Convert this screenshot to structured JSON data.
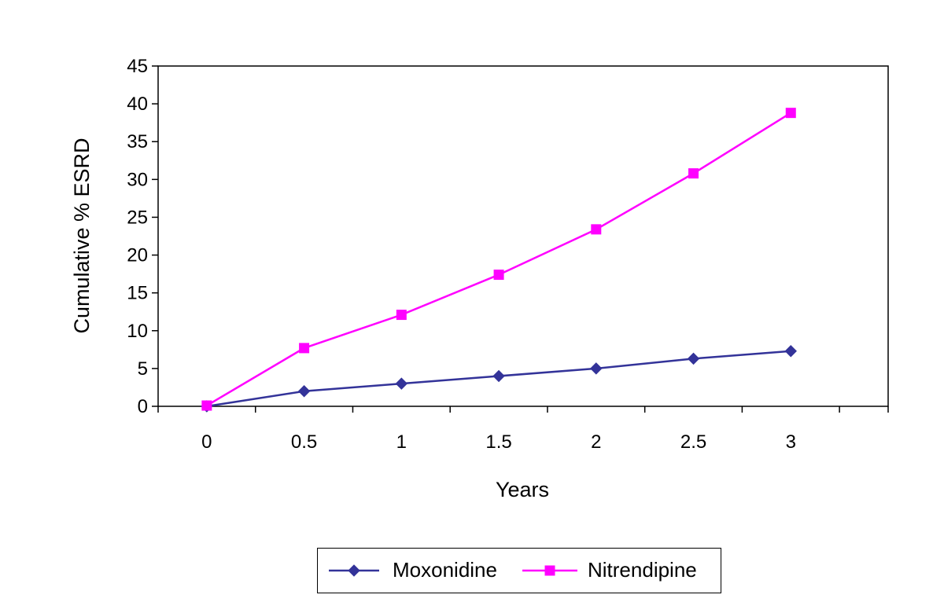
{
  "chart_data": {
    "type": "line",
    "title": "",
    "xlabel": "Years",
    "ylabel": "Cumulative % ESRD",
    "categories": [
      "0",
      "0.5",
      "1",
      "1.5",
      "2",
      "2.5",
      "3"
    ],
    "ylim": [
      0,
      45
    ],
    "yticks": [
      "0",
      "5",
      "10",
      "15",
      "20",
      "25",
      "30",
      "35",
      "40",
      "45"
    ],
    "grid": false,
    "legend_position": "bottom",
    "series": [
      {
        "name": "Moxonidine",
        "values": [
          0,
          2,
          3,
          4,
          5,
          6.3,
          7.3
        ],
        "color": "#333399",
        "marker": "diamond"
      },
      {
        "name": "Nitrendipine",
        "values": [
          0.1,
          7.7,
          12.1,
          17.4,
          23.4,
          30.8,
          38.8
        ],
        "color": "#ff00ff",
        "marker": "square"
      }
    ]
  }
}
